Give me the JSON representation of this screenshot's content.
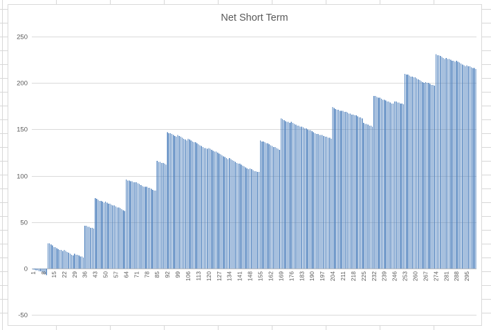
{
  "chart_data": {
    "type": "bar",
    "title": "Net Short Term",
    "xlabel": "",
    "ylabel": "",
    "ylim": [
      -50,
      250
    ],
    "yticks": [
      250,
      200,
      150,
      100,
      50,
      0,
      -50
    ],
    "grid": true,
    "legend": "none",
    "x_tick_labels": [
      1,
      8,
      15,
      22,
      29,
      36,
      43,
      50,
      57,
      64,
      71,
      78,
      85,
      92,
      99,
      106,
      113,
      120,
      127,
      134,
      141,
      148,
      155,
      162,
      169,
      176,
      183,
      190,
      197,
      204,
      211,
      218,
      225,
      232,
      239,
      246,
      253,
      260,
      267,
      274,
      281,
      288,
      295
    ],
    "values": [
      -1,
      -1,
      -2,
      -2,
      -3,
      -3,
      -4,
      -5,
      -6,
      -7,
      27,
      27,
      26,
      25,
      23,
      23,
      22,
      21,
      20,
      20,
      19,
      20,
      19,
      18,
      17,
      16,
      15,
      14,
      16,
      15,
      15,
      14,
      13,
      13,
      12,
      46,
      46,
      45,
      45,
      44,
      44,
      43,
      76,
      75,
      74,
      73,
      73,
      72,
      71,
      72,
      71,
      70,
      70,
      69,
      68,
      68,
      67,
      66,
      66,
      65,
      64,
      63,
      62,
      96,
      95,
      95,
      94,
      94,
      93,
      93,
      93,
      92,
      91,
      90,
      89,
      88,
      88,
      88,
      87,
      87,
      86,
      85,
      84,
      84,
      116,
      115,
      115,
      114,
      114,
      113,
      112,
      147,
      146,
      146,
      145,
      144,
      143,
      142,
      144,
      143,
      142,
      141,
      140,
      139,
      138,
      140,
      139,
      138,
      137,
      136,
      136,
      135,
      134,
      133,
      132,
      131,
      130,
      130,
      129,
      130,
      129,
      128,
      127,
      126,
      126,
      125,
      124,
      123,
      122,
      121,
      120,
      119,
      118,
      119,
      118,
      117,
      116,
      115,
      114,
      113,
      113,
      112,
      111,
      110,
      109,
      108,
      107,
      108,
      107,
      106,
      105,
      105,
      104,
      104,
      138,
      137,
      137,
      136,
      135,
      135,
      134,
      133,
      132,
      131,
      131,
      130,
      129,
      128,
      162,
      161,
      160,
      159,
      158,
      158,
      157,
      158,
      157,
      156,
      155,
      154,
      154,
      153,
      153,
      152,
      151,
      151,
      150,
      149,
      149,
      148,
      147,
      146,
      145,
      145,
      144,
      144,
      144,
      143,
      142,
      142,
      141,
      141,
      140,
      174,
      173,
      172,
      171,
      171,
      170,
      170,
      170,
      169,
      169,
      168,
      167,
      167,
      166,
      166,
      165,
      165,
      164,
      163,
      163,
      162,
      157,
      156,
      156,
      155,
      154,
      154,
      153,
      186,
      186,
      185,
      184,
      184,
      183,
      182,
      182,
      181,
      180,
      180,
      179,
      178,
      178,
      180,
      180,
      179,
      179,
      178,
      178,
      177,
      210,
      209,
      209,
      208,
      207,
      207,
      206,
      206,
      205,
      204,
      203,
      202,
      201,
      200,
      201,
      200,
      200,
      199,
      198,
      198,
      197,
      231,
      230,
      230,
      229,
      228,
      227,
      226,
      227,
      226,
      226,
      225,
      224,
      224,
      223,
      224,
      223,
      222,
      221,
      220,
      219,
      218,
      219,
      218,
      218,
      217,
      216,
      216,
      215
    ],
    "colors": {
      "bar": "#4F81BD",
      "gridline": "#d9d9d9",
      "axis_line": "#bfbfbf",
      "text": "#595959",
      "chart_border": "#d9d9d9",
      "sheet_gridline": "#d7d7d7"
    }
  }
}
